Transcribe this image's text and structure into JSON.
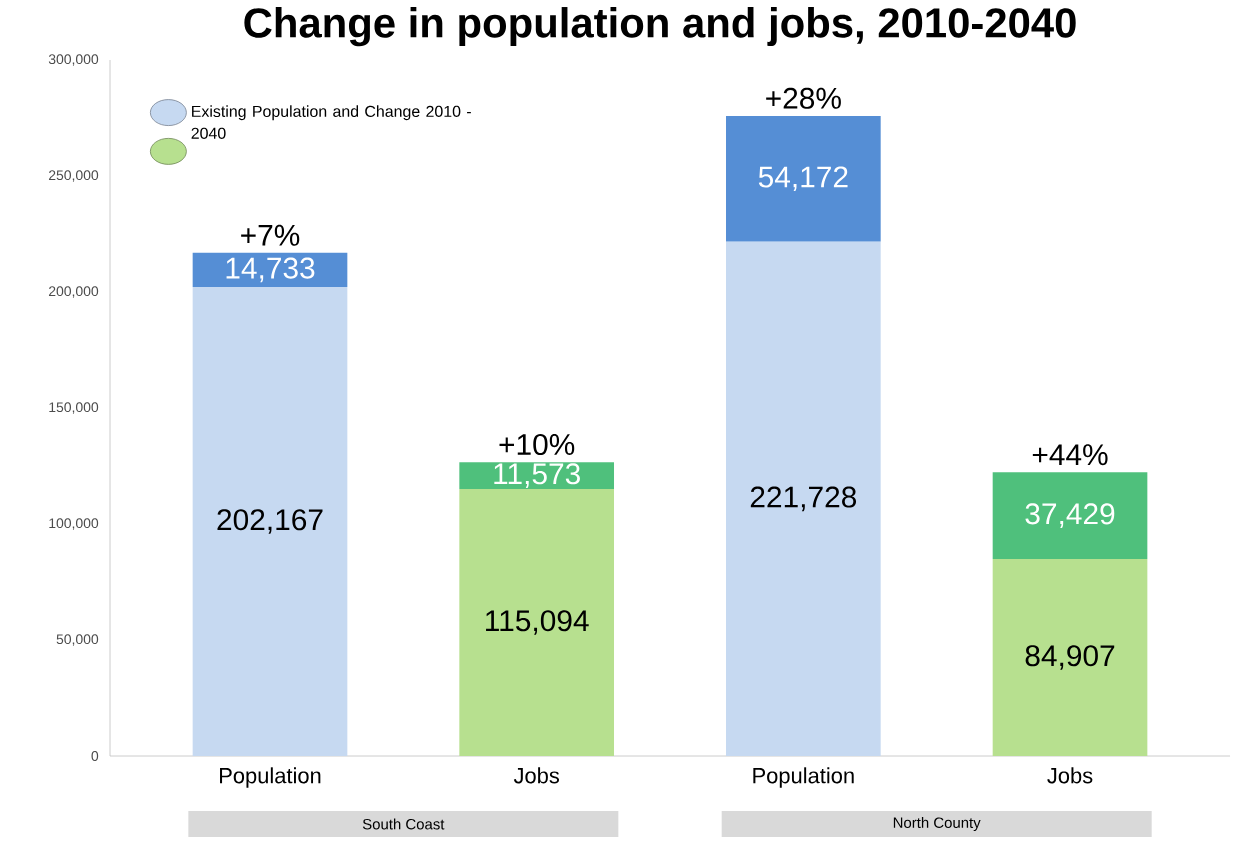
{
  "chart_data": {
    "type": "bar",
    "stacked": true,
    "title": "Change in population and jobs, 2010-2040",
    "categories": [
      "Population",
      "Jobs",
      "Population",
      "Jobs"
    ],
    "series": [
      {
        "name": "Existing Population and Change 2010 - 2040",
        "color": "#c6d9f1",
        "values": [
          202167,
          null,
          221728,
          null
        ],
        "value_labels": [
          "202,167",
          null,
          "221,728",
          null
        ]
      },
      {
        "color": "#b7e08f",
        "values": [
          null,
          115094,
          null,
          84907
        ],
        "value_labels": [
          null,
          "115,094",
          null,
          "84,907"
        ]
      },
      {
        "color": "#558ed5",
        "values": [
          14733,
          null,
          54172,
          null
        ],
        "value_labels": [
          "14,733",
          null,
          "54,172",
          null
        ]
      },
      {
        "color": "#4fc07c",
        "values": [
          null,
          11573,
          null,
          37429
        ],
        "value_labels": [
          null,
          "11,573",
          null,
          "37,429"
        ]
      }
    ],
    "annotations": [
      "+7%",
      "+10%",
      "+28%",
      "+44%",
      "South Coast",
      "North County"
    ],
    "ylim": [
      0,
      300000
    ],
    "yticks": [
      0,
      {
        "value": 50000,
        "label": "50,000"
      },
      {
        "value": 100000,
        "label": "100,000"
      },
      {
        "value": 150000,
        "label": "150,000"
      },
      {
        "value": 200000,
        "label": "200,000"
      },
      {
        "value": 250000,
        "label": "250,000"
      },
      {
        "value": 300000,
        "label": "300,000"
      }
    ],
    "legend": "top left",
    "grid": false
  }
}
